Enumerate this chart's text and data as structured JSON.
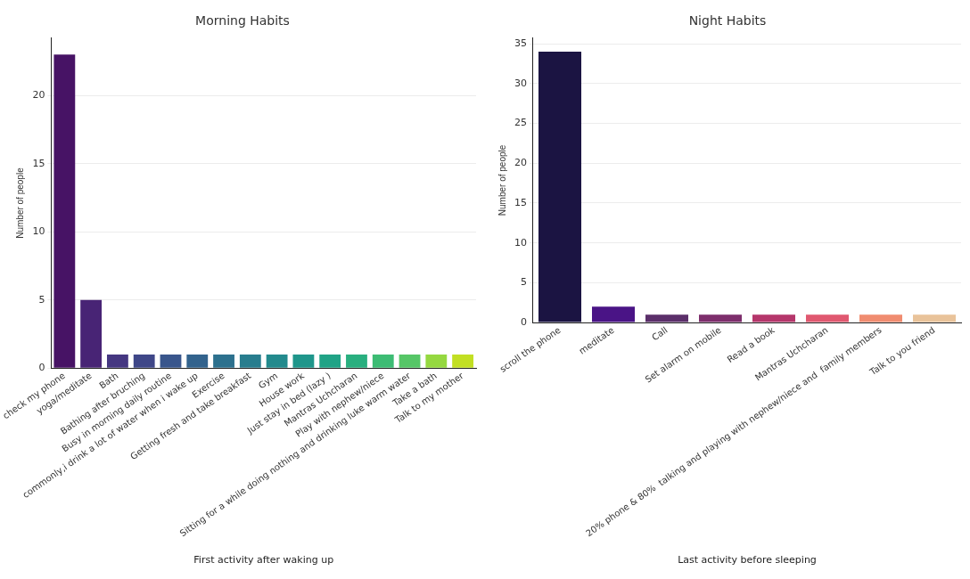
{
  "chart_data": [
    {
      "type": "bar",
      "title": "Morning Habits",
      "xlabel": "First activity after waking up",
      "ylabel": "Number of people",
      "categories": [
        "check my phone",
        "yoga/meditate",
        "Bath",
        "Bathing after bruching",
        "Busy in morning daily routine",
        "commonly,i drink a lot of water when i wake up",
        "Exercise",
        "Getting fresh and take breakfast",
        "Gym",
        "House work",
        "Just stay in bed (lazy )",
        "Mantras Uchcharan",
        "Play with nephew/niece",
        "Sitting for a while doing nothing and drinking luke warm water",
        "Take a bath",
        "Talk to my mother"
      ],
      "values": [
        23,
        5,
        1,
        1,
        1,
        1,
        1,
        1,
        1,
        1,
        1,
        1,
        1,
        1,
        1,
        1
      ],
      "colors": [
        "#471365",
        "#482475",
        "#453781",
        "#3f4788",
        "#39568c",
        "#33638d",
        "#2d718e",
        "#287d8e",
        "#238a8d",
        "#1f968b",
        "#20a386",
        "#29af7f",
        "#3dbc74",
        "#56c667",
        "#95d840",
        "#c2df23"
      ],
      "ylim": [
        0,
        24.2
      ],
      "yticks": [
        0,
        5,
        10,
        15,
        20
      ],
      "grid": "y",
      "legend": false
    },
    {
      "type": "bar",
      "title": "Night Habits",
      "xlabel": "Last activity before sleeping",
      "ylabel": "Number of people",
      "categories": [
        "scroll the phone",
        "meditate",
        "Call",
        "Set alarm on mobile",
        "Read a book",
        "Mantras Uchcharan",
        "20% phone & 80%  talking and playing with nephew/niece and  family members",
        "Talk to you friend"
      ],
      "values": [
        34,
        2,
        1,
        1,
        1,
        1,
        1,
        1
      ],
      "colors": [
        "#1b1442",
        "#4a1486",
        "#5b2f6a",
        "#7d2e6c",
        "#b5366b",
        "#e05870",
        "#f08c70",
        "#e9c39a"
      ],
      "ylim": [
        0,
        35.7
      ],
      "yticks": [
        0,
        5,
        10,
        15,
        20,
        25,
        30,
        35
      ],
      "grid": "y",
      "legend": false
    }
  ]
}
